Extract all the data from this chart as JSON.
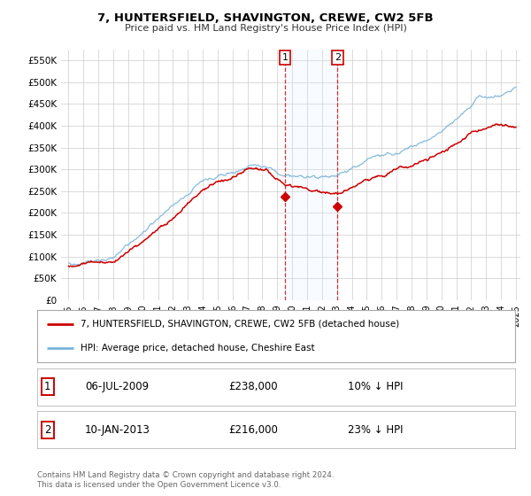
{
  "title": "7, HUNTERSFIELD, SHAVINGTON, CREWE, CW2 5FB",
  "subtitle": "Price paid vs. HM Land Registry's House Price Index (HPI)",
  "hpi_label": "HPI: Average price, detached house, Cheshire East",
  "property_label": "7, HUNTERSFIELD, SHAVINGTON, CREWE, CW2 5FB (detached house)",
  "sale1_date": "06-JUL-2009",
  "sale1_price": 238000,
  "sale1_pct": "10% ↓ HPI",
  "sale2_date": "10-JAN-2013",
  "sale2_price": 216000,
  "sale2_pct": "23% ↓ HPI",
  "sale1_x": 2009.51,
  "sale2_x": 2013.03,
  "footer1": "Contains HM Land Registry data © Crown copyright and database right 2024.",
  "footer2": "This data is licensed under the Open Government Licence v3.0.",
  "hpi_color": "#7ab4d8",
  "property_color": "#cc0000",
  "background_color": "#ffffff",
  "grid_color": "#cccccc",
  "shade_color": "#ddeeff",
  "ylim": [
    0,
    575000
  ],
  "xlim_start": 1994.5,
  "xlim_end": 2025.3,
  "yticks": [
    0,
    50000,
    100000,
    150000,
    200000,
    250000,
    300000,
    350000,
    400000,
    450000,
    500000,
    550000
  ],
  "ytick_labels": [
    "£0",
    "£50K",
    "£100K",
    "£150K",
    "£200K",
    "£250K",
    "£300K",
    "£350K",
    "£400K",
    "£450K",
    "£500K",
    "£550K"
  ],
  "xticks": [
    1995,
    1996,
    1997,
    1998,
    1999,
    2000,
    2001,
    2002,
    2003,
    2004,
    2005,
    2006,
    2007,
    2008,
    2009,
    2010,
    2011,
    2012,
    2013,
    2014,
    2015,
    2016,
    2017,
    2018,
    2019,
    2020,
    2021,
    2022,
    2023,
    2024,
    2025
  ],
  "xtick_labels": [
    "1995",
    "1996",
    "1997",
    "1998",
    "1999",
    "2000",
    "2001",
    "2002",
    "2003",
    "2004",
    "2005",
    "2006",
    "2007",
    "2008",
    "2009",
    "2010",
    "2011",
    "2012",
    "2013",
    "2014",
    "2015",
    "2016",
    "2017",
    "2018",
    "2019",
    "2020",
    "2021",
    "2022",
    "2023",
    "2024",
    "2025"
  ]
}
